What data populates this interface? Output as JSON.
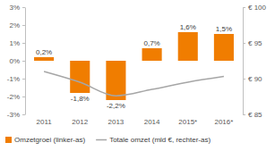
{
  "chart_data": {
    "type": "bar",
    "categories": [
      "2011",
      "2012",
      "2013",
      "2014",
      "2015*",
      "2016*"
    ],
    "series": [
      {
        "name": "Omzetgroei (linker-as)",
        "type": "bar",
        "color": "#f07d00",
        "values": [
          0.2,
          -1.8,
          -2.2,
          0.7,
          1.6,
          1.5
        ],
        "value_labels": [
          "0,2%",
          "-1,8%",
          "-2,2%",
          "0,7%",
          "1,6%",
          "1,5%"
        ]
      },
      {
        "name": "Totale omzet (mld €, rechter-as)",
        "type": "line",
        "axis": "y2",
        "color": "#a6a6a6",
        "values": [
          91.0,
          89.5,
          87.6,
          88.5,
          89.5,
          90.3
        ]
      }
    ],
    "ylim": [
      -3,
      3
    ],
    "yticks": [
      {
        "value": -3,
        "label": "-3%"
      },
      {
        "value": -2,
        "label": "-2%"
      },
      {
        "value": -1,
        "label": "-1%"
      },
      {
        "value": 0,
        "label": "0%"
      },
      {
        "value": 1,
        "label": "1%"
      },
      {
        "value": 2,
        "label": "2%"
      },
      {
        "value": 3,
        "label": "3%"
      }
    ],
    "y2lim": [
      85,
      100
    ],
    "y2ticks": [
      {
        "value": 85,
        "label": "€ 85"
      },
      {
        "value": 90,
        "label": "€ 90"
      },
      {
        "value": 95,
        "label": "€ 95"
      },
      {
        "value": 100,
        "label": "€ 100"
      }
    ],
    "data_labels": true,
    "grid": false,
    "legend": "bottom"
  }
}
